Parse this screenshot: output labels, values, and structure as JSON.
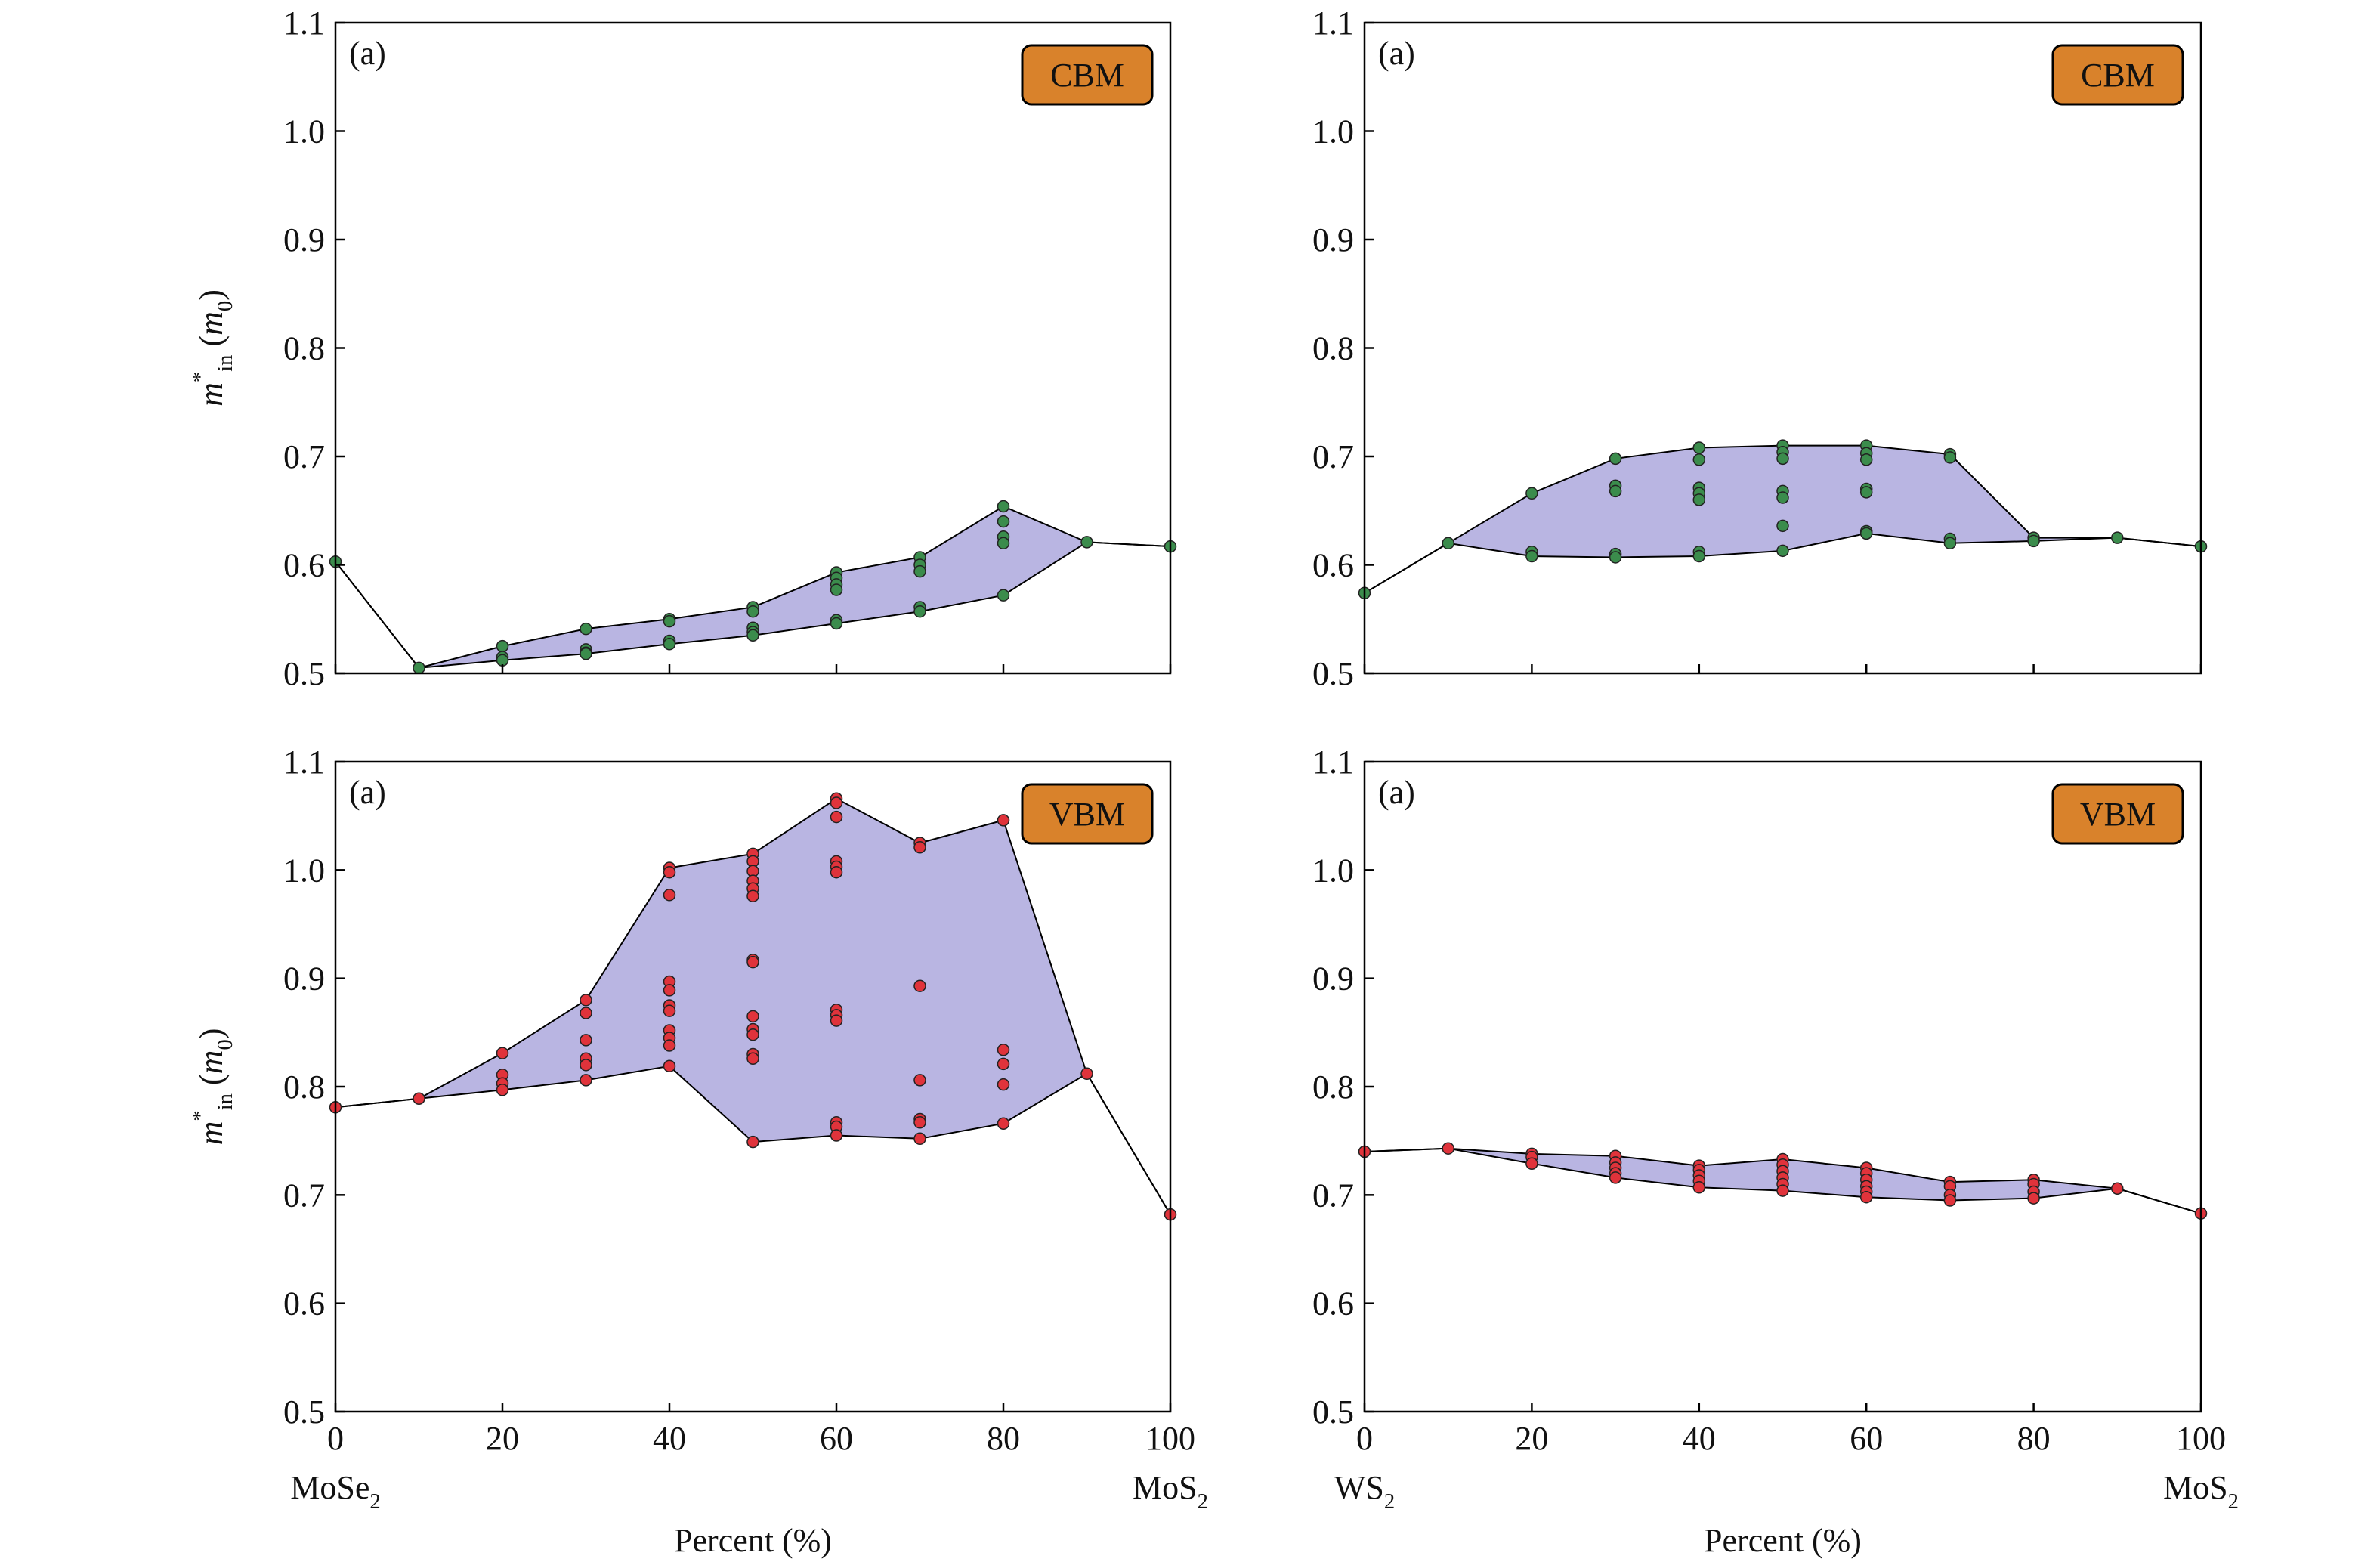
{
  "chart_data": [
    {
      "type": "scatter",
      "panel_label": "(a)",
      "badge": "CBM",
      "badge_color": "#d9822b",
      "ylabel": [
        {
          "text": "m",
          "style": "italic"
        },
        {
          "text": "*",
          "style": "sup"
        },
        {
          "text": "in",
          "style": "sub"
        },
        {
          "text": " (",
          "style": "normal"
        },
        {
          "text": "m",
          "style": "italic"
        },
        {
          "text": "0",
          "style": "sub"
        },
        {
          "text": ")",
          "style": "normal"
        }
      ],
      "xlim": [
        0,
        100
      ],
      "xticks": [
        0,
        20,
        40,
        60,
        80,
        100
      ],
      "show_xtick_labels": false,
      "ylim": [
        0.5,
        1.1
      ],
      "yticks": [
        0.5,
        0.6,
        0.7,
        0.8,
        0.9,
        {
          "value": 1.0,
          "label": "1.0"
        },
        1.1
      ],
      "color": "#3b8c4c",
      "envelope_color": "#b9b5e2",
      "x": [
        0,
        10,
        20,
        20,
        20,
        30,
        30,
        30,
        30,
        40,
        40,
        40,
        40,
        50,
        50,
        50,
        50,
        50,
        60,
        60,
        60,
        60,
        60,
        60,
        70,
        70,
        70,
        70,
        70,
        80,
        80,
        80,
        80,
        80,
        90,
        100
      ],
      "values": [
        0.603,
        0.505,
        0.525,
        0.515,
        0.512,
        0.541,
        0.522,
        0.519,
        0.518,
        0.55,
        0.548,
        0.53,
        0.527,
        0.561,
        0.557,
        0.542,
        0.538,
        0.535,
        0.593,
        0.588,
        0.582,
        0.577,
        0.549,
        0.546,
        0.607,
        0.6,
        0.594,
        0.561,
        0.557,
        0.654,
        0.64,
        0.626,
        0.62,
        0.572,
        0.621,
        0.617
      ],
      "envelope": {
        "x": [
          0,
          10,
          20,
          30,
          40,
          50,
          60,
          70,
          80,
          90,
          100
        ],
        "upper": [
          0.603,
          0.505,
          0.525,
          0.541,
          0.55,
          0.561,
          0.593,
          0.607,
          0.654,
          0.621,
          0.617
        ],
        "lower": [
          0.603,
          0.505,
          0.512,
          0.518,
          0.527,
          0.535,
          0.546,
          0.557,
          0.572,
          0.621,
          0.617
        ]
      }
    },
    {
      "type": "scatter",
      "panel_label": "(a)",
      "badge": "CBM",
      "badge_color": "#d9822b",
      "xlim": [
        0,
        100
      ],
      "xticks": [
        0,
        20,
        40,
        60,
        80,
        100
      ],
      "show_xtick_labels": false,
      "ylim": [
        0.5,
        1.1
      ],
      "yticks": [
        0.5,
        0.6,
        0.7,
        0.8,
        0.9,
        {
          "value": 1.0,
          "label": "1.0"
        },
        1.1
      ],
      "color": "#3b8c4c",
      "envelope_color": "#b9b5e2",
      "x": [
        0,
        10,
        20,
        20,
        20,
        30,
        30,
        30,
        30,
        30,
        40,
        40,
        40,
        40,
        40,
        40,
        40,
        50,
        50,
        50,
        50,
        50,
        50,
        50,
        60,
        60,
        60,
        60,
        60,
        60,
        60,
        70,
        70,
        70,
        70,
        80,
        80,
        90,
        100
      ],
      "values": [
        0.574,
        0.62,
        0.666,
        0.612,
        0.608,
        0.698,
        0.673,
        0.668,
        0.61,
        0.607,
        0.708,
        0.697,
        0.671,
        0.666,
        0.66,
        0.612,
        0.608,
        0.71,
        0.704,
        0.698,
        0.668,
        0.662,
        0.636,
        0.613,
        0.71,
        0.703,
        0.697,
        0.67,
        0.667,
        0.631,
        0.629,
        0.702,
        0.699,
        0.624,
        0.62,
        0.625,
        0.622,
        0.625,
        0.617
      ],
      "envelope": {
        "x": [
          0,
          10,
          20,
          30,
          40,
          50,
          60,
          70,
          80,
          90,
          100
        ],
        "upper": [
          0.574,
          0.62,
          0.666,
          0.698,
          0.708,
          0.71,
          0.71,
          0.702,
          0.625,
          0.625,
          0.617
        ],
        "lower": [
          0.574,
          0.62,
          0.608,
          0.607,
          0.608,
          0.613,
          0.629,
          0.62,
          0.622,
          0.625,
          0.617
        ]
      }
    },
    {
      "type": "scatter",
      "panel_label": "(a)",
      "badge": "VBM",
      "badge_color": "#d9822b",
      "ylabel": [
        {
          "text": "m",
          "style": "italic"
        },
        {
          "text": "*",
          "style": "sup"
        },
        {
          "text": "in",
          "style": "sub"
        },
        {
          "text": " (",
          "style": "normal"
        },
        {
          "text": "m",
          "style": "italic"
        },
        {
          "text": "0",
          "style": "sub"
        },
        {
          "text": ")",
          "style": "normal"
        }
      ],
      "xlabel": "Percent (%)",
      "x_end_labels": [
        [
          {
            "text": "MoSe",
            "style": "normal"
          },
          {
            "text": "2",
            "style": "sub"
          }
        ],
        [
          {
            "text": "MoS",
            "style": "normal"
          },
          {
            "text": "2",
            "style": "sub"
          }
        ]
      ],
      "xlim": [
        0,
        100
      ],
      "xticks": [
        0,
        20,
        40,
        60,
        80,
        100
      ],
      "show_xtick_labels": true,
      "ylim": [
        0.5,
        1.1
      ],
      "yticks": [
        0.5,
        0.6,
        0.7,
        0.8,
        0.9,
        {
          "value": 1.0,
          "label": "1.0"
        },
        1.1
      ],
      "color": "#e0333b",
      "envelope_color": "#b9b5e2",
      "x": [
        0,
        10,
        20,
        20,
        20,
        20,
        30,
        30,
        30,
        30,
        30,
        30,
        40,
        40,
        40,
        40,
        40,
        40,
        40,
        40,
        40,
        40,
        40,
        50,
        50,
        50,
        50,
        50,
        50,
        50,
        50,
        50,
        50,
        50,
        50,
        50,
        50,
        60,
        60,
        60,
        60,
        60,
        60,
        60,
        60,
        60,
        60,
        60,
        60,
        70,
        70,
        70,
        70,
        70,
        70,
        70,
        80,
        80,
        80,
        80,
        80,
        90,
        100
      ],
      "values": [
        0.781,
        0.789,
        0.831,
        0.811,
        0.803,
        0.797,
        0.88,
        0.868,
        0.843,
        0.826,
        0.82,
        0.806,
        1.002,
        0.998,
        0.977,
        0.897,
        0.889,
        0.875,
        0.87,
        0.852,
        0.845,
        0.838,
        0.819,
        1.015,
        1.008,
        0.999,
        0.99,
        0.983,
        0.976,
        0.917,
        0.915,
        0.865,
        0.853,
        0.848,
        0.83,
        0.826,
        0.749,
        1.066,
        1.062,
        1.049,
        1.008,
        1.003,
        0.998,
        0.871,
        0.866,
        0.861,
        0.767,
        0.763,
        0.755,
        1.025,
        1.021,
        0.893,
        0.806,
        0.77,
        0.767,
        0.752,
        1.046,
        0.834,
        0.821,
        0.802,
        0.766,
        0.812,
        0.682
      ],
      "envelope": {
        "x": [
          0,
          10,
          20,
          30,
          40,
          50,
          60,
          70,
          80,
          90,
          100
        ],
        "upper": [
          0.781,
          0.789,
          0.831,
          0.88,
          1.002,
          1.015,
          1.066,
          1.025,
          1.046,
          0.812,
          0.682
        ],
        "lower": [
          0.781,
          0.789,
          0.797,
          0.806,
          0.819,
          0.749,
          0.755,
          0.752,
          0.766,
          0.812,
          0.682
        ]
      }
    },
    {
      "type": "scatter",
      "panel_label": "(a)",
      "badge": "VBM",
      "badge_color": "#d9822b",
      "xlabel": "Percent (%)",
      "x_end_labels": [
        [
          {
            "text": "WS",
            "style": "normal"
          },
          {
            "text": "2",
            "style": "sub"
          }
        ],
        [
          {
            "text": "MoS",
            "style": "normal"
          },
          {
            "text": "2",
            "style": "sub"
          }
        ]
      ],
      "xlim": [
        0,
        100
      ],
      "xticks": [
        0,
        20,
        40,
        60,
        80,
        100
      ],
      "show_xtick_labels": true,
      "ylim": [
        0.5,
        1.1
      ],
      "yticks": [
        0.5,
        0.6,
        0.7,
        0.8,
        0.9,
        {
          "value": 1.0,
          "label": "1.0"
        },
        1.1
      ],
      "color": "#e0333b",
      "envelope_color": "#b9b5e2",
      "x": [
        0,
        10,
        20,
        20,
        20,
        30,
        30,
        30,
        30,
        30,
        40,
        40,
        40,
        40,
        40,
        50,
        50,
        50,
        50,
        50,
        50,
        60,
        60,
        60,
        60,
        60,
        60,
        70,
        70,
        70,
        70,
        80,
        80,
        80,
        80,
        90,
        100
      ],
      "values": [
        0.74,
        0.743,
        0.738,
        0.735,
        0.729,
        0.736,
        0.73,
        0.725,
        0.72,
        0.716,
        0.727,
        0.723,
        0.718,
        0.713,
        0.707,
        0.733,
        0.728,
        0.722,
        0.716,
        0.71,
        0.704,
        0.725,
        0.72,
        0.714,
        0.708,
        0.703,
        0.698,
        0.712,
        0.708,
        0.7,
        0.695,
        0.714,
        0.71,
        0.703,
        0.697,
        0.706,
        0.683
      ],
      "envelope": {
        "x": [
          0,
          10,
          20,
          30,
          40,
          50,
          60,
          70,
          80,
          90,
          100
        ],
        "upper": [
          0.74,
          0.743,
          0.738,
          0.736,
          0.727,
          0.733,
          0.725,
          0.712,
          0.714,
          0.706,
          0.683
        ],
        "lower": [
          0.74,
          0.743,
          0.729,
          0.716,
          0.707,
          0.704,
          0.698,
          0.695,
          0.697,
          0.706,
          0.683
        ]
      }
    }
  ]
}
